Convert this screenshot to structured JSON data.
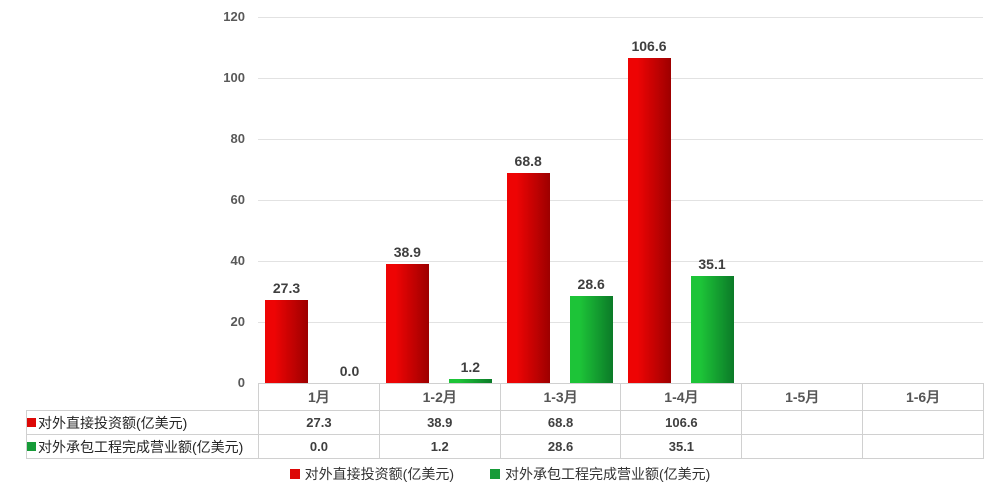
{
  "chart_data": {
    "type": "bar",
    "categories": [
      "1月",
      "1-2月",
      "1-3月",
      "1-4月",
      "1-5月",
      "1-6月"
    ],
    "series": [
      {
        "name": "对外直接投资额(亿美元)",
        "values": [
          27.3,
          38.9,
          68.8,
          106.6,
          null,
          null
        ],
        "bar_gradient_from": "#ee0404",
        "bar_gradient_to": "#9d0000",
        "swatch_color": "#dd0806"
      },
      {
        "name": "对外承包工程完成营业额(亿美元)",
        "values": [
          0.0,
          1.2,
          28.6,
          35.1,
          null,
          null
        ],
        "bar_gradient_from": "#1dc438",
        "bar_gradient_to": "#0b7a28",
        "swatch_color": "#169b38"
      }
    ],
    "title": "",
    "xlabel": "",
    "ylabel": "",
    "ylim": [
      0,
      120
    ],
    "yticks": [
      "0",
      "20",
      "40",
      "60",
      "80",
      "100",
      "120"
    ],
    "grid": true,
    "gridline_color": "#e2e2e2",
    "table_border_color": "#d0d0d0",
    "legend_position": "bottom",
    "data_table_shown": true,
    "value_decimals": 1
  }
}
